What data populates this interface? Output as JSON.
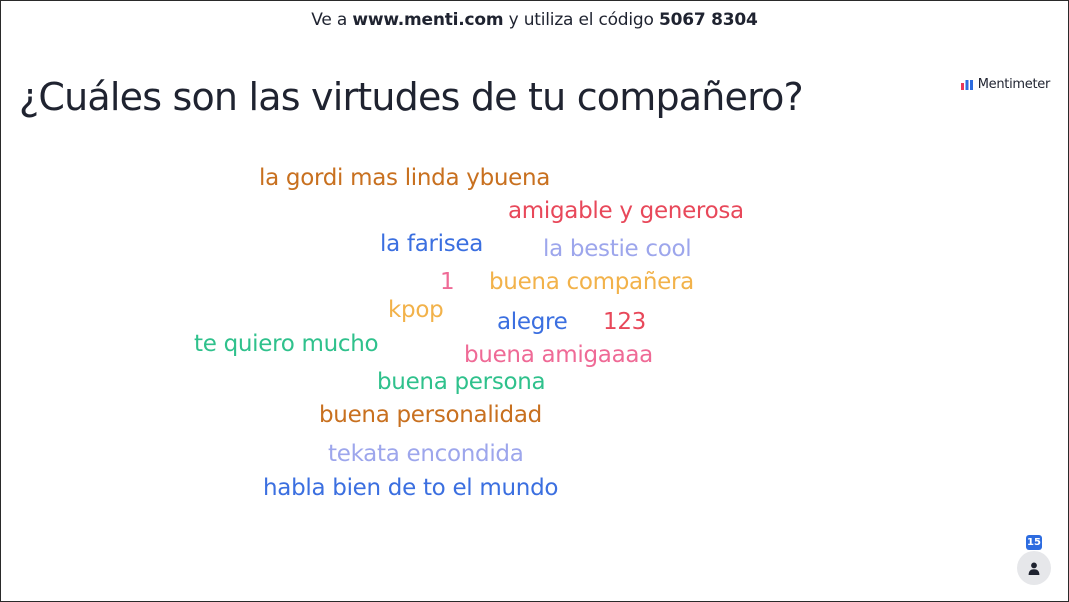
{
  "join": {
    "prefix": "Ve a",
    "url": "www.menti.com",
    "middle": "y utiliza el código",
    "code": "5067 8304"
  },
  "question": "¿Cuáles son las virtudes de tu compañero?",
  "brand": {
    "name": "Mentimeter",
    "logo_colors": [
      "#e8375a",
      "#2d6ce0"
    ]
  },
  "word_cloud": [
    {
      "text": "la gordi mas linda ybuena",
      "color": "#c8701f"
    },
    {
      "text": "amigable y generosa",
      "color": "#e8485a"
    },
    {
      "text": "la farisea",
      "color": "#3b6fe0"
    },
    {
      "text": "la bestie cool",
      "color": "#9da6ec"
    },
    {
      "text": "1",
      "color": "#ef6a96"
    },
    {
      "text": "buena compañera",
      "color": "#f2b24a"
    },
    {
      "text": "kpop",
      "color": "#f2b24a"
    },
    {
      "text": "alegre",
      "color": "#3b6fe0"
    },
    {
      "text": "123",
      "color": "#e8485a"
    },
    {
      "text": "te quiero mucho",
      "color": "#2fc18c"
    },
    {
      "text": "buena amigaaaa",
      "color": "#ef6a96"
    },
    {
      "text": "buena persona",
      "color": "#2fc18c"
    },
    {
      "text": "buena personalidad",
      "color": "#c8701f"
    },
    {
      "text": "tekata encondida",
      "color": "#9da6ec"
    },
    {
      "text": "habla bien de to el mundo",
      "color": "#3b6fe0"
    }
  ],
  "participants": {
    "count": "15",
    "icon": "person-icon"
  }
}
